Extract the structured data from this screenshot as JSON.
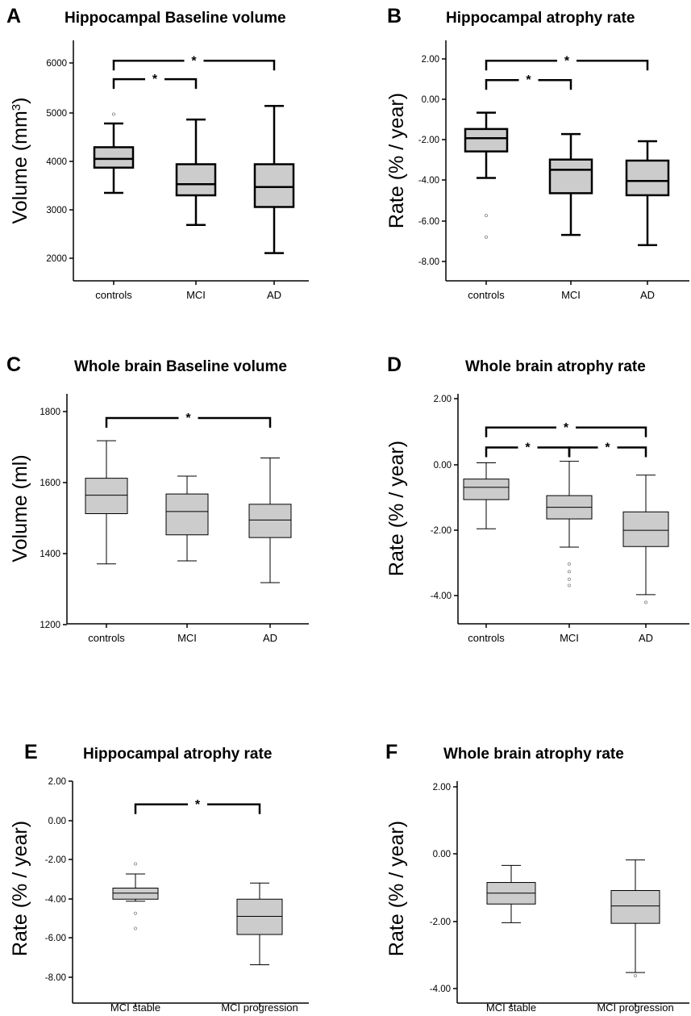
{
  "chart_data": [
    {
      "type": "box",
      "letter": "A",
      "title": "Hippocampal Baseline volume",
      "ylabel": "Volume (mm",
      "ylabel_sup": "3",
      "ylabel_tail": ")",
      "yticks": [
        "6000",
        "5000",
        "4000",
        "3000",
        "2000"
      ],
      "categories": [
        "controls",
        "MCI",
        "AD"
      ],
      "ylim": [
        1550,
        6500
      ],
      "fill": "#cccccc",
      "series": [
        {
          "whisker_low": 3360,
          "q1": 3880,
          "median": 4060,
          "q3": 4300,
          "whisker_high": 4790,
          "outliers": [
            4980
          ]
        },
        {
          "whisker_low": 2700,
          "q1": 3310,
          "median": 3540,
          "q3": 3950,
          "whisker_high": 4870,
          "outliers": []
        },
        {
          "whisker_low": 2120,
          "q1": 3070,
          "median": 3480,
          "q3": 3950,
          "whisker_high": 5150,
          "outliers": []
        }
      ],
      "significance": [
        {
          "from": 0,
          "to": 2,
          "y": 6080,
          "label": "*"
        },
        {
          "from": 0,
          "to": 1,
          "y": 5700,
          "label": "*"
        }
      ]
    },
    {
      "type": "box",
      "letter": "B",
      "title": "Hippocampal atrophy rate",
      "ylabel": "Rate (% / year)",
      "yticks": [
        "2.00",
        "0.00",
        "-2.00",
        "-4.00",
        "-6.00",
        "-8.00"
      ],
      "categories": [
        "controls",
        "MCI",
        "AD"
      ],
      "ylim": [
        -8.9,
        2.9
      ],
      "fill": "#cccccc",
      "series": [
        {
          "whisker_low": -3.85,
          "q1": -2.55,
          "median": -1.9,
          "q3": -1.45,
          "whisker_high": -0.65,
          "outliers": [
            -5.7,
            -6.75
          ]
        },
        {
          "whisker_low": -6.65,
          "q1": -4.6,
          "median": -3.45,
          "q3": -2.95,
          "whisker_high": -1.7,
          "outliers": []
        },
        {
          "whisker_low": -7.15,
          "q1": -4.7,
          "median": -4.0,
          "q3": -3.0,
          "whisker_high": -2.05,
          "outliers": []
        }
      ],
      "significance": [
        {
          "from": 0,
          "to": 2,
          "y": 1.9,
          "label": "*"
        },
        {
          "from": 0,
          "to": 1,
          "y": 0.95,
          "label": "*"
        }
      ]
    },
    {
      "type": "box",
      "letter": "C",
      "title": "Whole brain Baseline volume",
      "ylabel": "Volume (ml)",
      "yticks": [
        "1800",
        "1600",
        "1400",
        "1200"
      ],
      "categories": [
        "controls",
        "MCI",
        "AD"
      ],
      "ylim": [
        1120,
        1880
      ],
      "fill": "#cccccc",
      "series": [
        {
          "whisker_low": 1318,
          "q1": 1484,
          "median": 1545,
          "q3": 1601,
          "whisker_high": 1725,
          "outliers": []
        },
        {
          "whisker_low": 1328,
          "q1": 1414,
          "median": 1491,
          "q3": 1549,
          "whisker_high": 1608,
          "outliers": []
        },
        {
          "whisker_low": 1256,
          "q1": 1405,
          "median": 1463,
          "q3": 1515,
          "whisker_high": 1668,
          "outliers": []
        }
      ],
      "significance": [
        {
          "from": 0,
          "to": 2,
          "y": 1800,
          "label": "*"
        }
      ]
    },
    {
      "type": "box",
      "letter": "D",
      "title": "Whole brain atrophy rate",
      "ylabel": "Rate (% / year)",
      "yticks": [
        "2.00",
        "0.00",
        "-2.00",
        "-4.00"
      ],
      "categories": [
        "controls",
        "MCI",
        "AD"
      ],
      "ylim": [
        -4.9,
        2.6
      ],
      "fill": "#cccccc",
      "series": [
        {
          "whisker_low": -1.8,
          "q1": -0.85,
          "median": -0.45,
          "q3": -0.18,
          "whisker_high": 0.35,
          "outliers": []
        },
        {
          "whisker_low": -2.4,
          "q1": -1.48,
          "median": -1.1,
          "q3": -0.72,
          "whisker_high": 0.4,
          "outliers": [
            -2.95,
            -3.2,
            -3.45,
            -3.65
          ]
        },
        {
          "whisker_low": -3.95,
          "q1": -2.38,
          "median": -1.85,
          "q3": -1.25,
          "whisker_high": -0.05,
          "outliers": [
            -4.2
          ]
        }
      ],
      "significance": [
        {
          "from": 0,
          "to": 2,
          "y": 1.5,
          "label": "*"
        },
        {
          "from": 0,
          "to": 1,
          "y": 0.85,
          "label": "*"
        },
        {
          "from": 1,
          "to": 2,
          "y": 0.85,
          "label": "*"
        }
      ]
    },
    {
      "type": "box",
      "letter": "E",
      "title": "Hippocampal atrophy rate",
      "ylabel": "Rate (% / year)",
      "yticks": [
        "2.00",
        "0.00",
        "-2.00",
        "-4.00",
        "-6.00",
        "-8.00"
      ],
      "categories": [
        "MCI stable",
        "MCI progression"
      ],
      "ylim": [
        -8.5,
        2.5
      ],
      "fill": "#cccccc",
      "series": [
        {
          "whisker_low": -3.45,
          "q1": -3.35,
          "median": -3.05,
          "q3": -2.8,
          "whisker_high": -2.1,
          "outliers": [
            -1.6,
            -4.05,
            -4.8
          ]
        },
        {
          "whisker_low": -6.6,
          "q1": -5.1,
          "median": -4.2,
          "q3": -3.35,
          "whisker_high": -2.55,
          "outliers": []
        }
      ],
      "significance": [
        {
          "from": 0,
          "to": 1,
          "y": 1.35,
          "label": "*"
        }
      ]
    },
    {
      "type": "box",
      "letter": "F",
      "title": "Whole brain atrophy rate",
      "ylabel": "Rate (% / year)",
      "yticks": [
        "2.00",
        "0.00",
        "-2.00",
        "-4.00"
      ],
      "categories": [
        "MCI stable",
        "MCI progression"
      ],
      "ylim": [
        -4.3,
        2.6
      ],
      "fill": "#cccccc",
      "series": [
        {
          "whisker_low": -1.8,
          "q1": -1.22,
          "median": -0.88,
          "q3": -0.55,
          "whisker_high": -0.02,
          "outliers": []
        },
        {
          "whisker_low": -3.35,
          "q1": -1.82,
          "median": -1.28,
          "q3": -0.8,
          "whisker_high": 0.15,
          "outliers": [
            -3.45
          ]
        }
      ],
      "significance": []
    }
  ]
}
